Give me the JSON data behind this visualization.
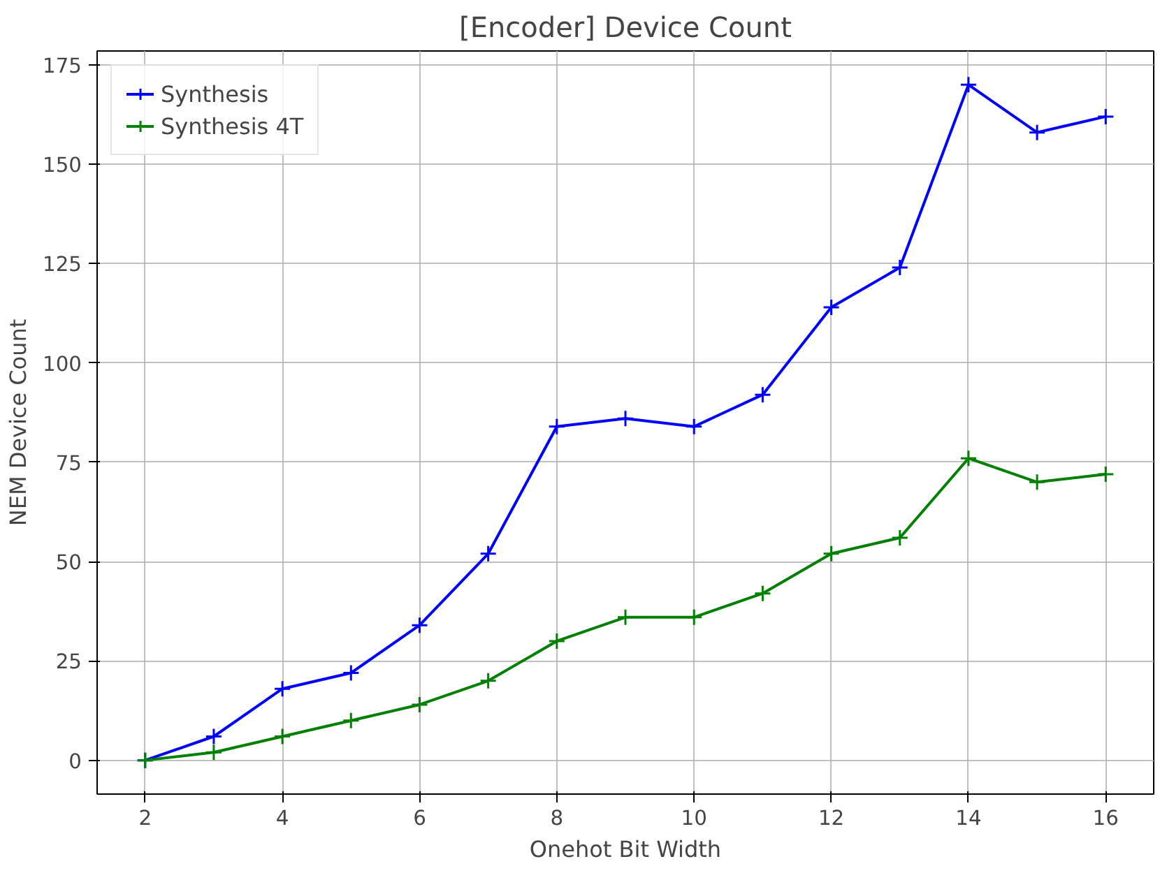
{
  "chart_data": {
    "type": "line",
    "title": "[Encoder] Device Count",
    "xlabel": "Onehot Bit Width",
    "ylabel": "NEM Device Count",
    "x": [
      2,
      3,
      4,
      5,
      6,
      7,
      8,
      9,
      10,
      11,
      12,
      13,
      14,
      15,
      16
    ],
    "series": [
      {
        "name": "Synthesis",
        "color": "#0000ff",
        "values": [
          0,
          6,
          18,
          22,
          34,
          52,
          84,
          86,
          84,
          92,
          114,
          124,
          170,
          158,
          162
        ]
      },
      {
        "name": "Synthesis 4T",
        "color": "#008000",
        "values": [
          0,
          2,
          6,
          10,
          14,
          20,
          30,
          36,
          36,
          42,
          52,
          56,
          76,
          70,
          72
        ]
      }
    ],
    "xlim": [
      1.3,
      16.7
    ],
    "ylim": [
      -8.5,
      178.5
    ],
    "xticks": [
      2,
      4,
      6,
      8,
      10,
      12,
      14,
      16
    ],
    "yticks": [
      0,
      25,
      50,
      75,
      100,
      125,
      150,
      175
    ],
    "grid": true,
    "legend": "top left",
    "marker": "cross",
    "line_style": "solid"
  }
}
